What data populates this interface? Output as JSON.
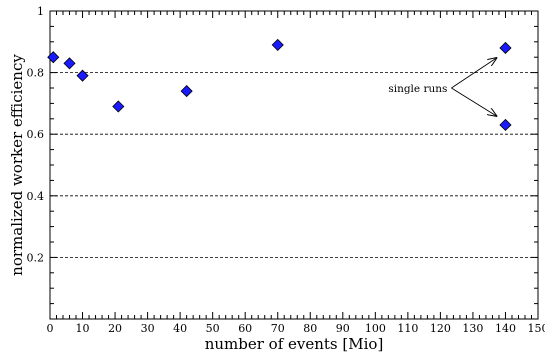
{
  "chart_data": {
    "type": "scatter",
    "title": "",
    "xlabel": "number of events [Mio]",
    "ylabel": "normalized worker efficiency",
    "xlim": [
      0,
      150
    ],
    "ylim": [
      0,
      1
    ],
    "x_ticks": [
      0,
      10,
      20,
      30,
      40,
      50,
      60,
      70,
      80,
      90,
      100,
      110,
      120,
      130,
      140,
      150
    ],
    "y_ticks": [
      0.2,
      0.4,
      0.6,
      0.8,
      1
    ],
    "y_tick_labels": [
      "0.2",
      "0.4",
      "0.6",
      "0.8",
      "1"
    ],
    "grid": "horizontal dashed",
    "marker": "diamond",
    "marker_color": "#1a1aff",
    "series": [
      {
        "x": [
          1,
          6,
          10,
          21,
          42,
          70,
          140,
          140
        ],
        "y": [
          0.85,
          0.83,
          0.79,
          0.69,
          0.74,
          0.89,
          0.88,
          0.63
        ]
      }
    ],
    "annotations": [
      {
        "text": "single runs",
        "points_to_x": [
          140,
          140
        ],
        "points_to_y": [
          0.88,
          0.63
        ]
      }
    ]
  }
}
